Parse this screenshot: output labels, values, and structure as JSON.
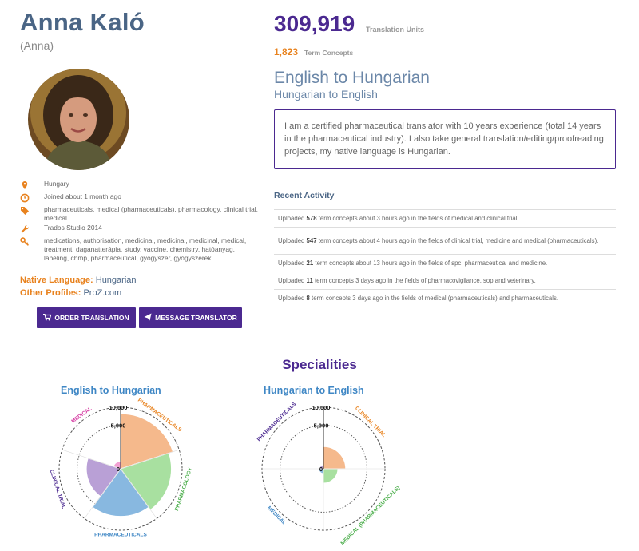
{
  "profile": {
    "name": "Anna Kaló",
    "nickname": "(Anna)",
    "location": "Hungary",
    "joined": "Joined about 1 month ago",
    "fields": "pharmaceuticals, medical (pharmaceuticals), pharmacology, clinical trial, medical",
    "software": "Trados Studio 2014",
    "keywords": "medications, authorisation, medicinal, medicinal, medicinal, medical, treatment, daganatterápia, study, vaccine, chemistry, hatóanyag, labeling, chmp, pharmaceutical, gyógyszer, gyógyszerek",
    "native_language_label": "Native Language:",
    "native_language": "Hungarian",
    "other_profiles_label": "Other Profiles:",
    "other_profiles": "ProZ.com"
  },
  "icons": {
    "location": "map-pin-icon",
    "joined": "clock-icon",
    "fields": "tags-icon",
    "software": "wrench-icon",
    "keywords": "key-icon",
    "order": "cart-icon",
    "message": "send-icon"
  },
  "buttons": {
    "order": "ORDER TRANSLATION",
    "message": "MESSAGE TRANSLATOR"
  },
  "stats": {
    "translation_units": "309,919",
    "translation_units_label": "Translation Units",
    "term_concepts": "1,823",
    "term_concepts_label": "Term Concepts"
  },
  "pairs": {
    "primary": "English to Hungarian",
    "secondary": "Hungarian to English"
  },
  "bio": "I am a certified pharmaceutical translator with 10 years experience (total 14 years in the pharmaceutical industry). I also take general translation/editing/proofreading projects, my native language is Hungarian.",
  "recent_activity": {
    "title": "Recent Activity",
    "items": [
      {
        "pre": "Uploaded ",
        "count": "578",
        "post": " term concepts about 3 hours ago in the fields of medical and clinical trial."
      },
      {
        "pre": "Uploaded ",
        "count": "547",
        "post": " term concepts about 4 hours ago in the fields of clinical trial, medicine and medical (pharmaceuticals)."
      },
      {
        "pre": "Uploaded ",
        "count": "21",
        "post": " term concepts about 13 hours ago in the fields of spc, pharmaceutical and medicine."
      },
      {
        "pre": "Uploaded ",
        "count": "11",
        "post": " term concepts 3 days ago in the fields of pharmacovigilance, sop and veterinary."
      },
      {
        "pre": "Uploaded ",
        "count": "8",
        "post": " term concepts 3 days ago in the fields of medical (pharmaceuticals) and pharmaceuticals."
      }
    ]
  },
  "specialities_title": "Specialities",
  "colors": {
    "brand": "#4b2990",
    "accent": "#e8821e",
    "heading": "#4a6585",
    "chart_title": "#3f87c5"
  },
  "chart_data": [
    {
      "type": "polar-area",
      "title": "English to Hungarian",
      "rmax": 10000,
      "ticks": [
        "0",
        "5,000",
        "10,000"
      ],
      "categories": [
        {
          "name": "PHARMACEUTICALS",
          "value": 8000,
          "color": "#f5b98c",
          "label_color": "#e8821e"
        },
        {
          "name": "PHARMACOLOGY",
          "value": 6800,
          "color": "#a8e0a0",
          "label_color": "#4cae4c"
        },
        {
          "name": "PHARMACEUTICALS",
          "value": 6000,
          "color": "#88b8e0",
          "label_color": "#3f87c5"
        },
        {
          "name": "CLINICAL TRIAL",
          "value": 3100,
          "color": "#b9a0d6",
          "label_color": "#4b2990"
        },
        {
          "name": "MEDICAL",
          "value": 150,
          "color": "#f2a0d2",
          "label_color": "#d63ea4"
        }
      ]
    },
    {
      "type": "polar-area",
      "title": "Hungarian to English",
      "rmax": 10000,
      "ticks": [
        "0",
        "5,000",
        "10,000"
      ],
      "categories": [
        {
          "name": "CLINICAL TRIAL",
          "value": 1300,
          "color": "#f5b98c",
          "label_color": "#e8821e"
        },
        {
          "name": "MEDICAL (PHARMACEUTICALS)",
          "value": 550,
          "color": "#a8e0a0",
          "label_color": "#4cae4c"
        },
        {
          "name": "MEDICAL",
          "value": 60,
          "color": "#88b8e0",
          "label_color": "#3f87c5"
        },
        {
          "name": "PHARMACEUTICALS",
          "value": 40,
          "color": "#b9a0d6",
          "label_color": "#4b2990"
        }
      ]
    }
  ]
}
